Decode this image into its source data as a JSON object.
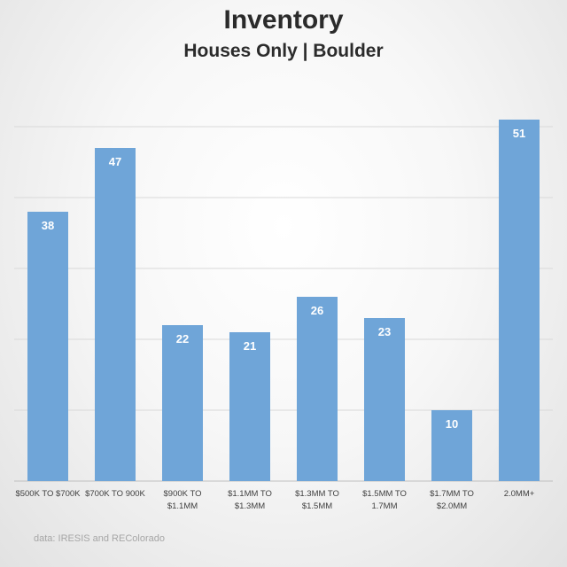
{
  "chart_data": {
    "type": "bar",
    "title": "Inventory",
    "subtitle": "Houses Only | Boulder",
    "categories": [
      [
        "$500K TO $700K"
      ],
      [
        "$700K TO 900K"
      ],
      [
        "$900K TO",
        "$1.1MM"
      ],
      [
        "$1.1MM TO",
        "$1.3MM"
      ],
      [
        "$1.3MM TO",
        "$1.5MM"
      ],
      [
        "$1.5MM TO",
        "1.7MM"
      ],
      [
        "$1.7MM TO",
        "$2.0MM"
      ],
      [
        "2.0MM+"
      ]
    ],
    "values": [
      38,
      47,
      22,
      21,
      26,
      23,
      10,
      51
    ],
    "ylim": [
      0,
      60
    ],
    "gridlines": [
      0,
      10,
      20,
      30,
      40,
      50
    ],
    "grid": true,
    "bar_color": "#6fa5d8",
    "label_color": "#ffffff"
  },
  "source": "data: IRESIS and REColorado"
}
